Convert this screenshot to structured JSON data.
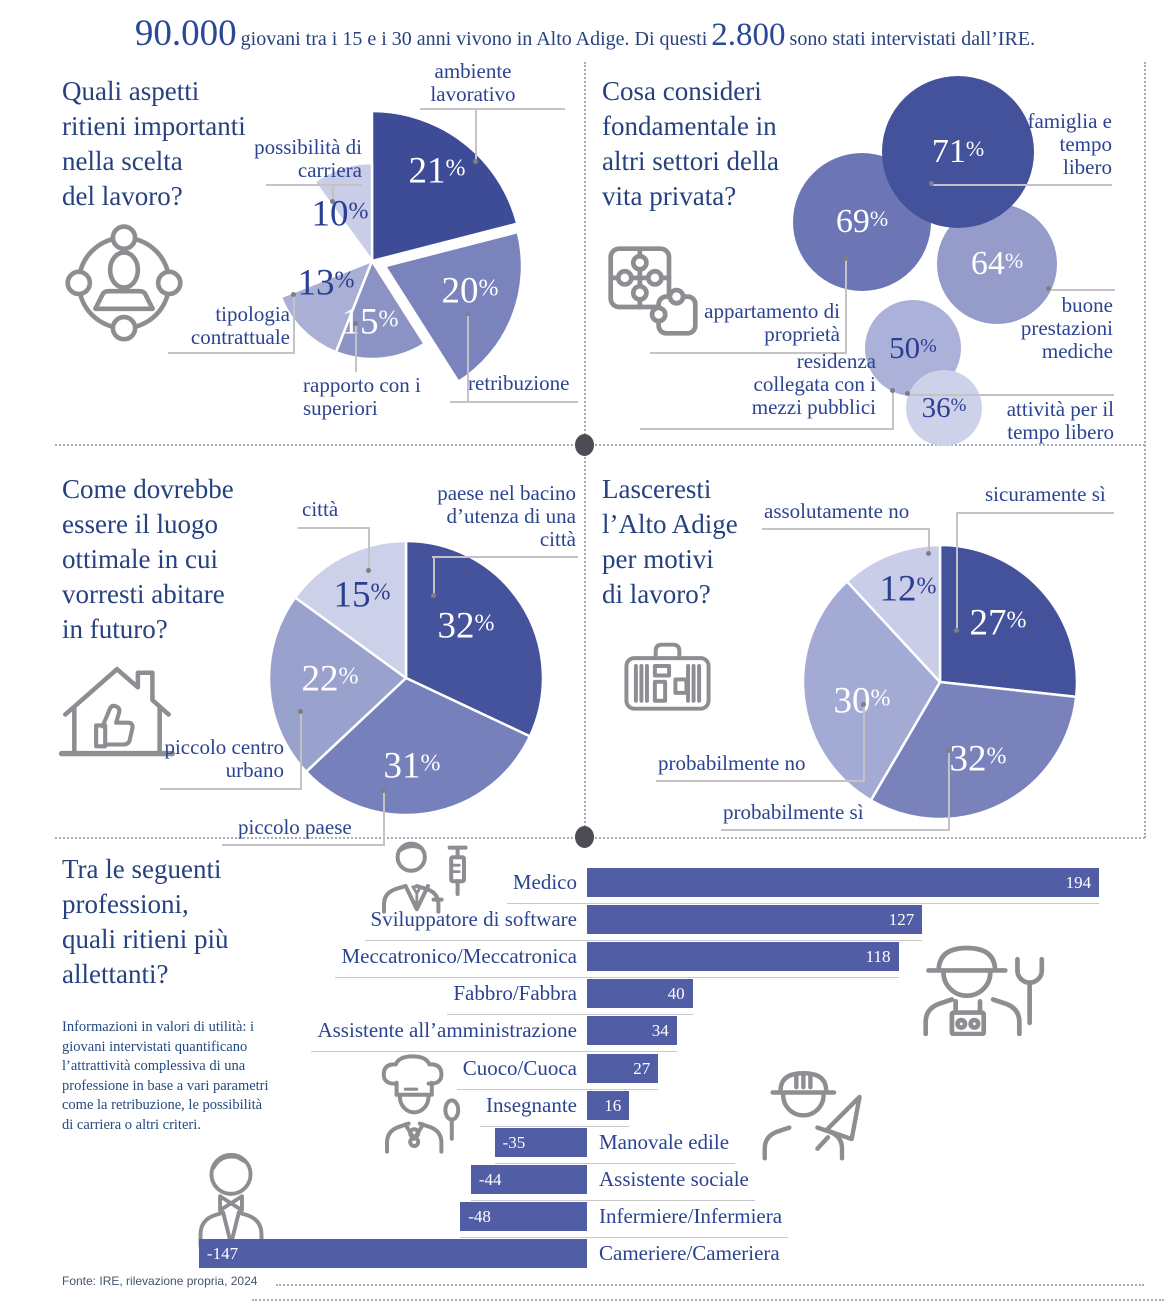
{
  "meta": {
    "pct_sign": "%"
  },
  "header": {
    "stat1": "90.000",
    "text1": "giovani tra i 15 e i 30 anni vivono in Alto Adige. Di questi",
    "stat2": "2.800",
    "text2": "sono stati intervistati dall’IRE."
  },
  "chart_data": [
    {
      "id": "aspetti-lavoro",
      "type": "pie",
      "title": "Quali aspetti ritieni importanti nella scelta del lavoro?",
      "title_lines": [
        "Quali aspetti",
        "ritieni importanti",
        "nella scelta",
        "del lavoro?"
      ],
      "icon": "people-network-icon",
      "shown_total_pct": 79,
      "slices": [
        {
          "label": "ambiente lavorativo",
          "value": 21,
          "color": "#3e4c98"
        },
        {
          "label": "retribuzione",
          "value": 20,
          "color": "#7b83bd"
        },
        {
          "label": "rapporto con i superiori",
          "value": 15,
          "color": "#8b93c5"
        },
        {
          "label": "tipologia contrattuale",
          "value": 13,
          "color": "#a9afd5"
        },
        {
          "label": "possibilità di carriera",
          "value": 10,
          "color": "#c9cde8",
          "gap_before": 21
        }
      ]
    },
    {
      "id": "vita-privata",
      "type": "bubble",
      "title": "Cosa consideri fondamentale in altri settori della vita privata?",
      "title_lines": [
        "Cosa consideri",
        "fondamentale in",
        "altri settori della",
        "vita privata?"
      ],
      "icon": "puzzle-icon",
      "items": [
        {
          "label": "famiglia e tempo libero",
          "value": 71,
          "color": "#44519b"
        },
        {
          "label": "appartamento di proprietà",
          "value": 69,
          "color": "#6c76b5"
        },
        {
          "label": "buone prestazioni mediche",
          "value": 64,
          "color": "#959cca"
        },
        {
          "label": "residenza collegata con i mezzi pubblici",
          "value": 50,
          "color": "#abb1d8"
        },
        {
          "label": "attività per il tempo libero",
          "value": 36,
          "color": "#cdd1e9"
        }
      ]
    },
    {
      "id": "luogo-ottimale",
      "type": "pie",
      "title": "Come dovrebbe essere il luogo ottimale in cui vorresti abitare in futuro?",
      "title_lines": [
        "Come dovrebbe",
        "essere il luogo",
        "ottimale in cui",
        "vorresti abitare",
        "in futuro?"
      ],
      "icon": "house-thumbs-up-icon",
      "slices": [
        {
          "label": "paese nel bacino d’utenza di una città",
          "value": 32,
          "color": "#45539d"
        },
        {
          "label": "piccolo paese",
          "value": 31,
          "color": "#7680ba"
        },
        {
          "label": "piccolo centro urbano",
          "value": 22,
          "color": "#99a1cd"
        },
        {
          "label": "città",
          "value": 15,
          "color": "#ccd0e8"
        }
      ]
    },
    {
      "id": "lasceresti-alto-adige",
      "type": "pie",
      "title": "Lasceresti l’Alto Adige per motivi di lavoro?",
      "title_lines": [
        "Lasceresti",
        "l’Alto Adige",
        "per motivi",
        "di lavoro?"
      ],
      "icon": "suitcase-icon",
      "slices": [
        {
          "label": "sicuramente sì",
          "value": 27,
          "color": "#44529c"
        },
        {
          "label": "probabilmente sì",
          "value": 32,
          "color": "#7a82bc"
        },
        {
          "label": "probabilmente no",
          "value": 30,
          "color": "#a3aad4"
        },
        {
          "label": "assolutamente no",
          "value": 12,
          "color": "#c9cde8"
        }
      ]
    },
    {
      "id": "professioni",
      "type": "bar",
      "title": "Tra le seguenti professioni, quali ritieni più allettanti?",
      "title_lines": [
        "Tra le seguenti",
        "professioni,",
        "quali ritieni più",
        "allettanti?"
      ],
      "description": "Informazioni in valori di utilità: i giovani intervistati quantificano l’attrattività complessiva di una professione in base a vari parametri come la retribuzione, le possibilità di carriera o altri criteri.",
      "bar_color": "#515ea6",
      "value_text_color": "#ffffff",
      "icons": [
        "doctor-icon",
        "mechanic-icon",
        "chef-icon",
        "construction-worker-icon",
        "waiter-icon"
      ],
      "xlim": [
        -147,
        194
      ],
      "items": [
        {
          "label": "Medico",
          "value": 194
        },
        {
          "label": "Sviluppatore di software",
          "value": 127
        },
        {
          "label": "Meccatronico/Meccatronica",
          "value": 118
        },
        {
          "label": "Fabbro/Fabbra",
          "value": 40
        },
        {
          "label": "Assistente all’amministrazione",
          "value": 34
        },
        {
          "label": "Cuoco/Cuoca",
          "value": 27
        },
        {
          "label": "Insegnante",
          "value": 16
        },
        {
          "label": "Manovale edile",
          "value": -35
        },
        {
          "label": "Assistente sociale",
          "value": -44
        },
        {
          "label": "Infermiere/Infermiera",
          "value": -48
        },
        {
          "label": "Cameriere/Cameriera",
          "value": -147
        }
      ]
    }
  ],
  "footer": {
    "source": "Fonte: IRE, rilevazione propria, 2024"
  }
}
